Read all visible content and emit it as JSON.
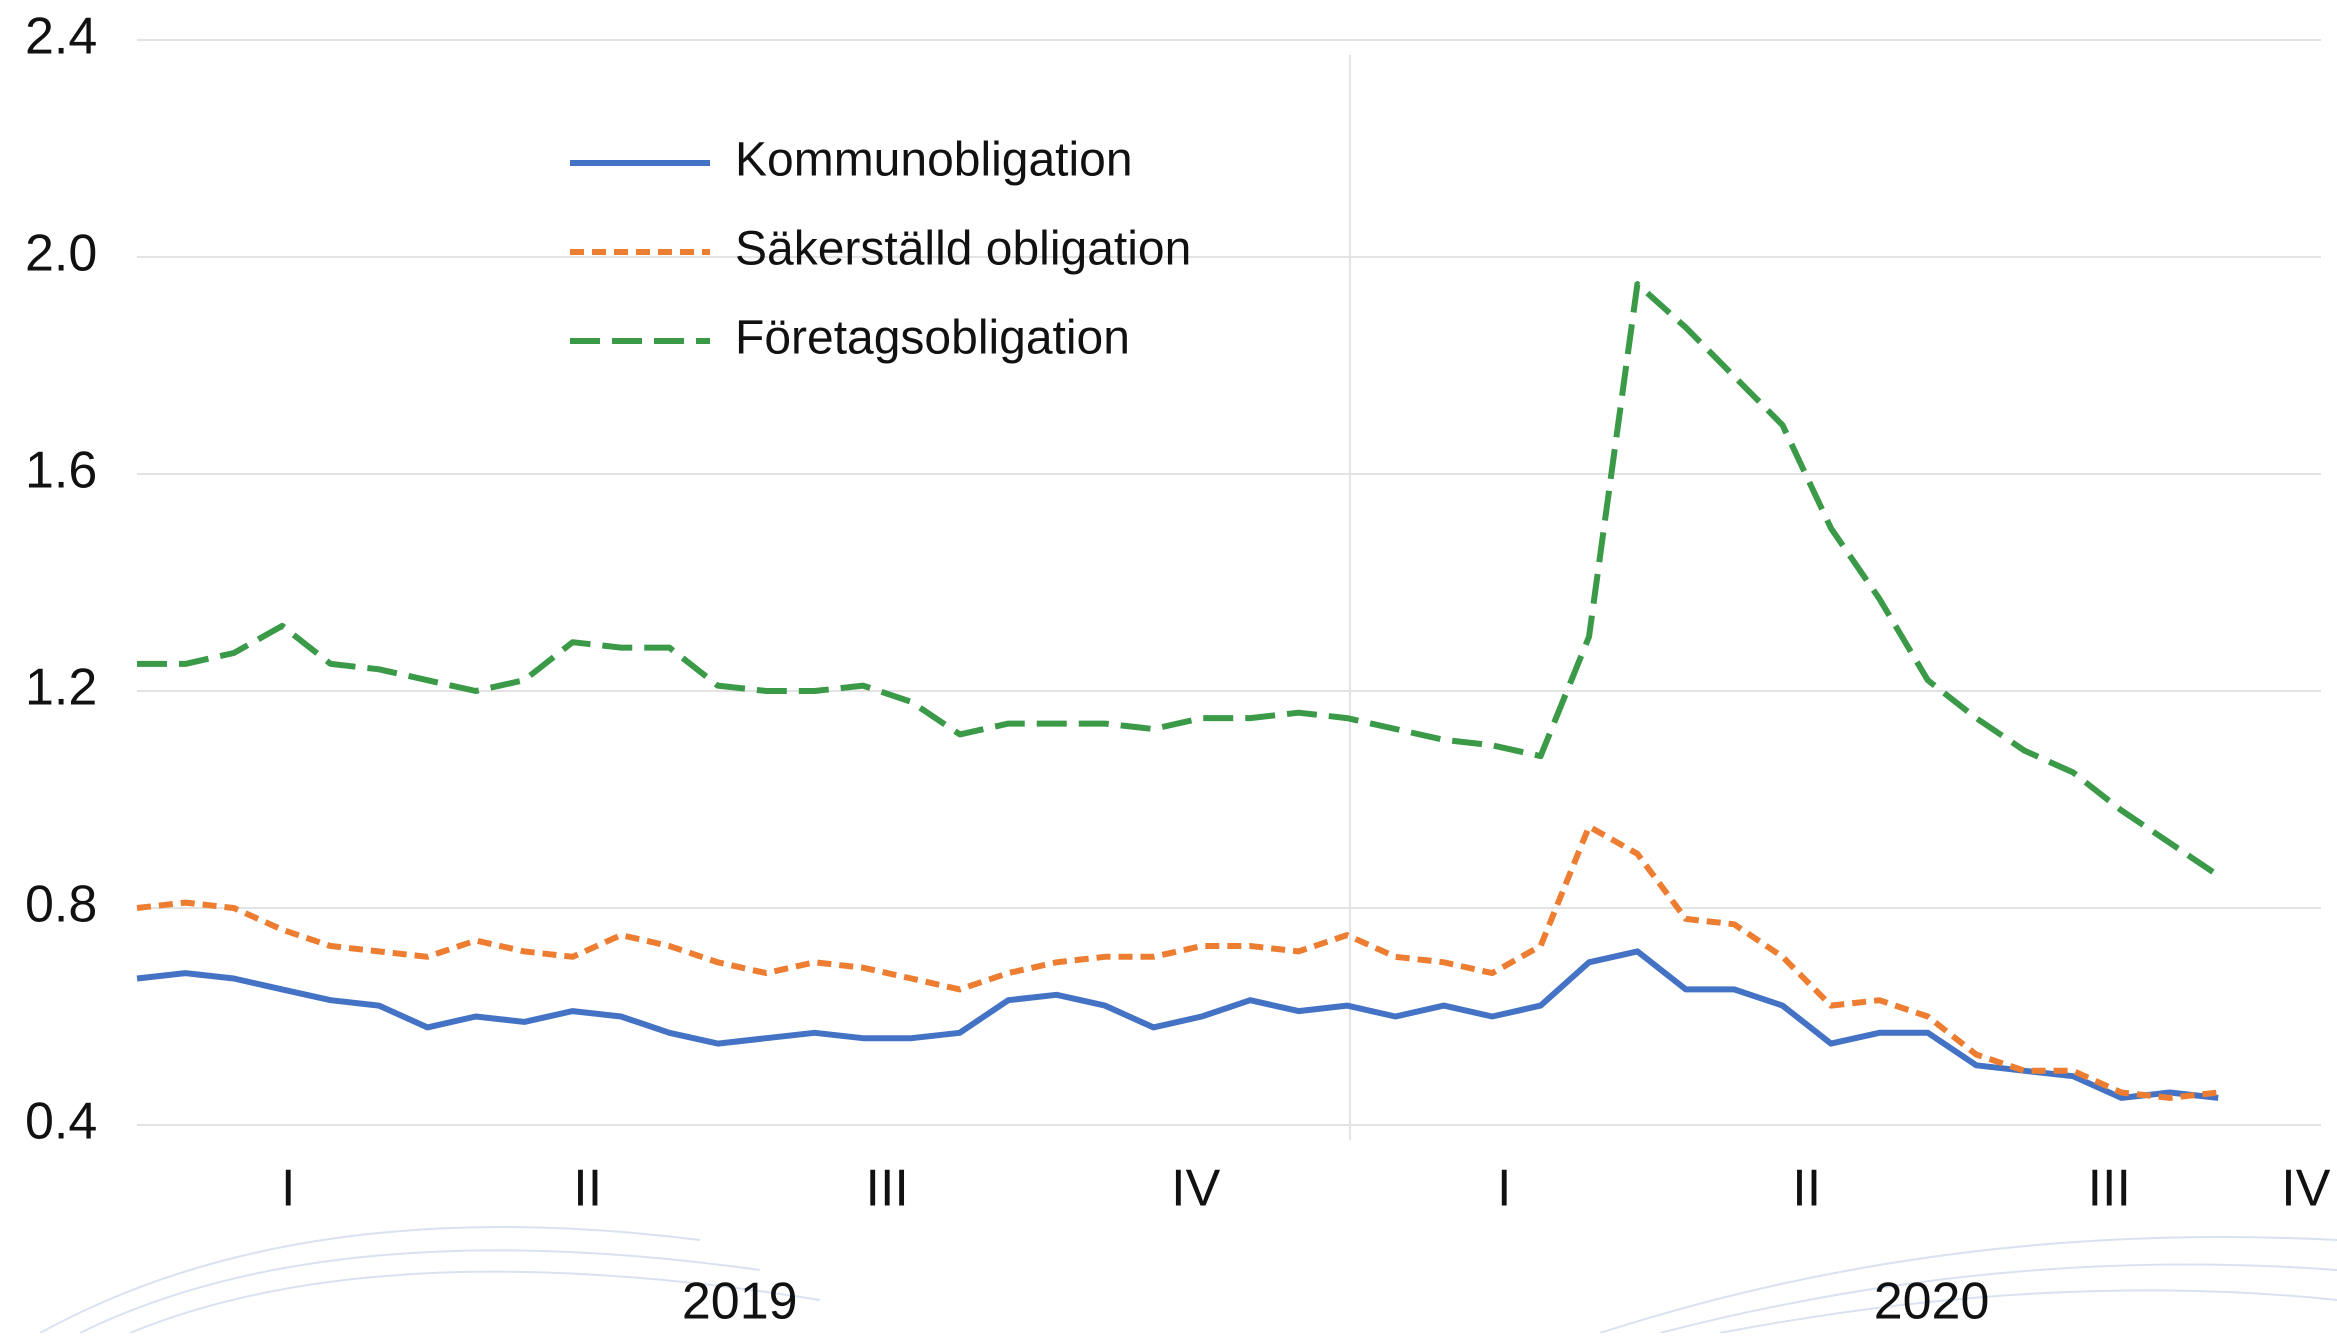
{
  "chart_data": {
    "type": "line",
    "x": [
      0,
      0.16,
      0.32,
      0.48,
      0.64,
      0.8,
      0.96,
      1.12,
      1.28,
      1.44,
      1.6,
      1.76,
      1.92,
      2.08,
      2.24,
      2.4,
      2.56,
      2.72,
      2.88,
      3.04,
      3.2,
      3.36,
      3.52,
      3.68,
      3.84,
      4.0,
      4.16,
      4.32,
      4.48,
      4.64,
      4.8,
      4.96,
      5.12,
      5.28,
      5.44,
      5.6,
      5.76,
      5.92,
      6.08,
      6.24,
      6.4,
      6.56,
      6.72,
      6.88
    ],
    "series": [
      {
        "name": "Kommunobligation",
        "color": "#4472c4",
        "dash": "solid",
        "values": [
          0.67,
          0.68,
          0.67,
          0.65,
          0.63,
          0.62,
          0.58,
          0.6,
          0.59,
          0.61,
          0.6,
          0.57,
          0.55,
          0.56,
          0.57,
          0.56,
          0.56,
          0.57,
          0.63,
          0.64,
          0.62,
          0.58,
          0.6,
          0.63,
          0.61,
          0.62,
          0.6,
          0.62,
          0.6,
          0.62,
          0.7,
          0.72,
          0.65,
          0.65,
          0.62,
          0.55,
          0.57,
          0.57,
          0.51,
          0.5,
          0.49,
          0.45,
          0.46,
          0.45
        ]
      },
      {
        "name": "Säkerställd obligation",
        "color": "#ed7d31",
        "dash": "short",
        "values": [
          0.8,
          0.81,
          0.8,
          0.76,
          0.73,
          0.72,
          0.71,
          0.74,
          0.72,
          0.71,
          0.75,
          0.73,
          0.7,
          0.68,
          0.7,
          0.69,
          0.67,
          0.65,
          0.68,
          0.7,
          0.71,
          0.71,
          0.73,
          0.73,
          0.72,
          0.75,
          0.71,
          0.7,
          0.68,
          0.73,
          0.95,
          0.9,
          0.78,
          0.77,
          0.71,
          0.62,
          0.63,
          0.6,
          0.53,
          0.5,
          0.5,
          0.46,
          0.45,
          0.46
        ]
      },
      {
        "name": "Företagsobligation",
        "color": "#3b9a48",
        "dash": "long",
        "values": [
          1.25,
          1.25,
          1.27,
          1.32,
          1.25,
          1.24,
          1.22,
          1.2,
          1.22,
          1.29,
          1.28,
          1.28,
          1.21,
          1.2,
          1.2,
          1.21,
          1.18,
          1.12,
          1.14,
          1.14,
          1.14,
          1.13,
          1.15,
          1.15,
          1.16,
          1.15,
          1.13,
          1.11,
          1.1,
          1.08,
          1.3,
          1.95,
          1.87,
          1.78,
          1.69,
          1.5,
          1.37,
          1.22,
          1.15,
          1.09,
          1.05,
          0.98,
          0.92,
          0.86
        ]
      }
    ],
    "xlim": [
      0,
      7.22
    ],
    "xticks": [
      {
        "value": 0.5,
        "label": "I"
      },
      {
        "value": 1.49,
        "label": "II"
      },
      {
        "value": 2.48,
        "label": "III"
      },
      {
        "value": 3.5,
        "label": "IV"
      },
      {
        "value": 4.52,
        "label": "I"
      },
      {
        "value": 5.52,
        "label": "II"
      },
      {
        "value": 6.52,
        "label": "III"
      },
      {
        "value": 7.17,
        "label": "IV"
      }
    ],
    "x_groups": [
      "2019",
      "2020"
    ],
    "ylim": [
      0.4,
      2.4
    ],
    "yticks": [
      0.4,
      0.8,
      1.2,
      1.6,
      {
        "value": 2,
        "label": "2.0"
      },
      2.4
    ],
    "grid": true,
    "legend": "top-left"
  }
}
